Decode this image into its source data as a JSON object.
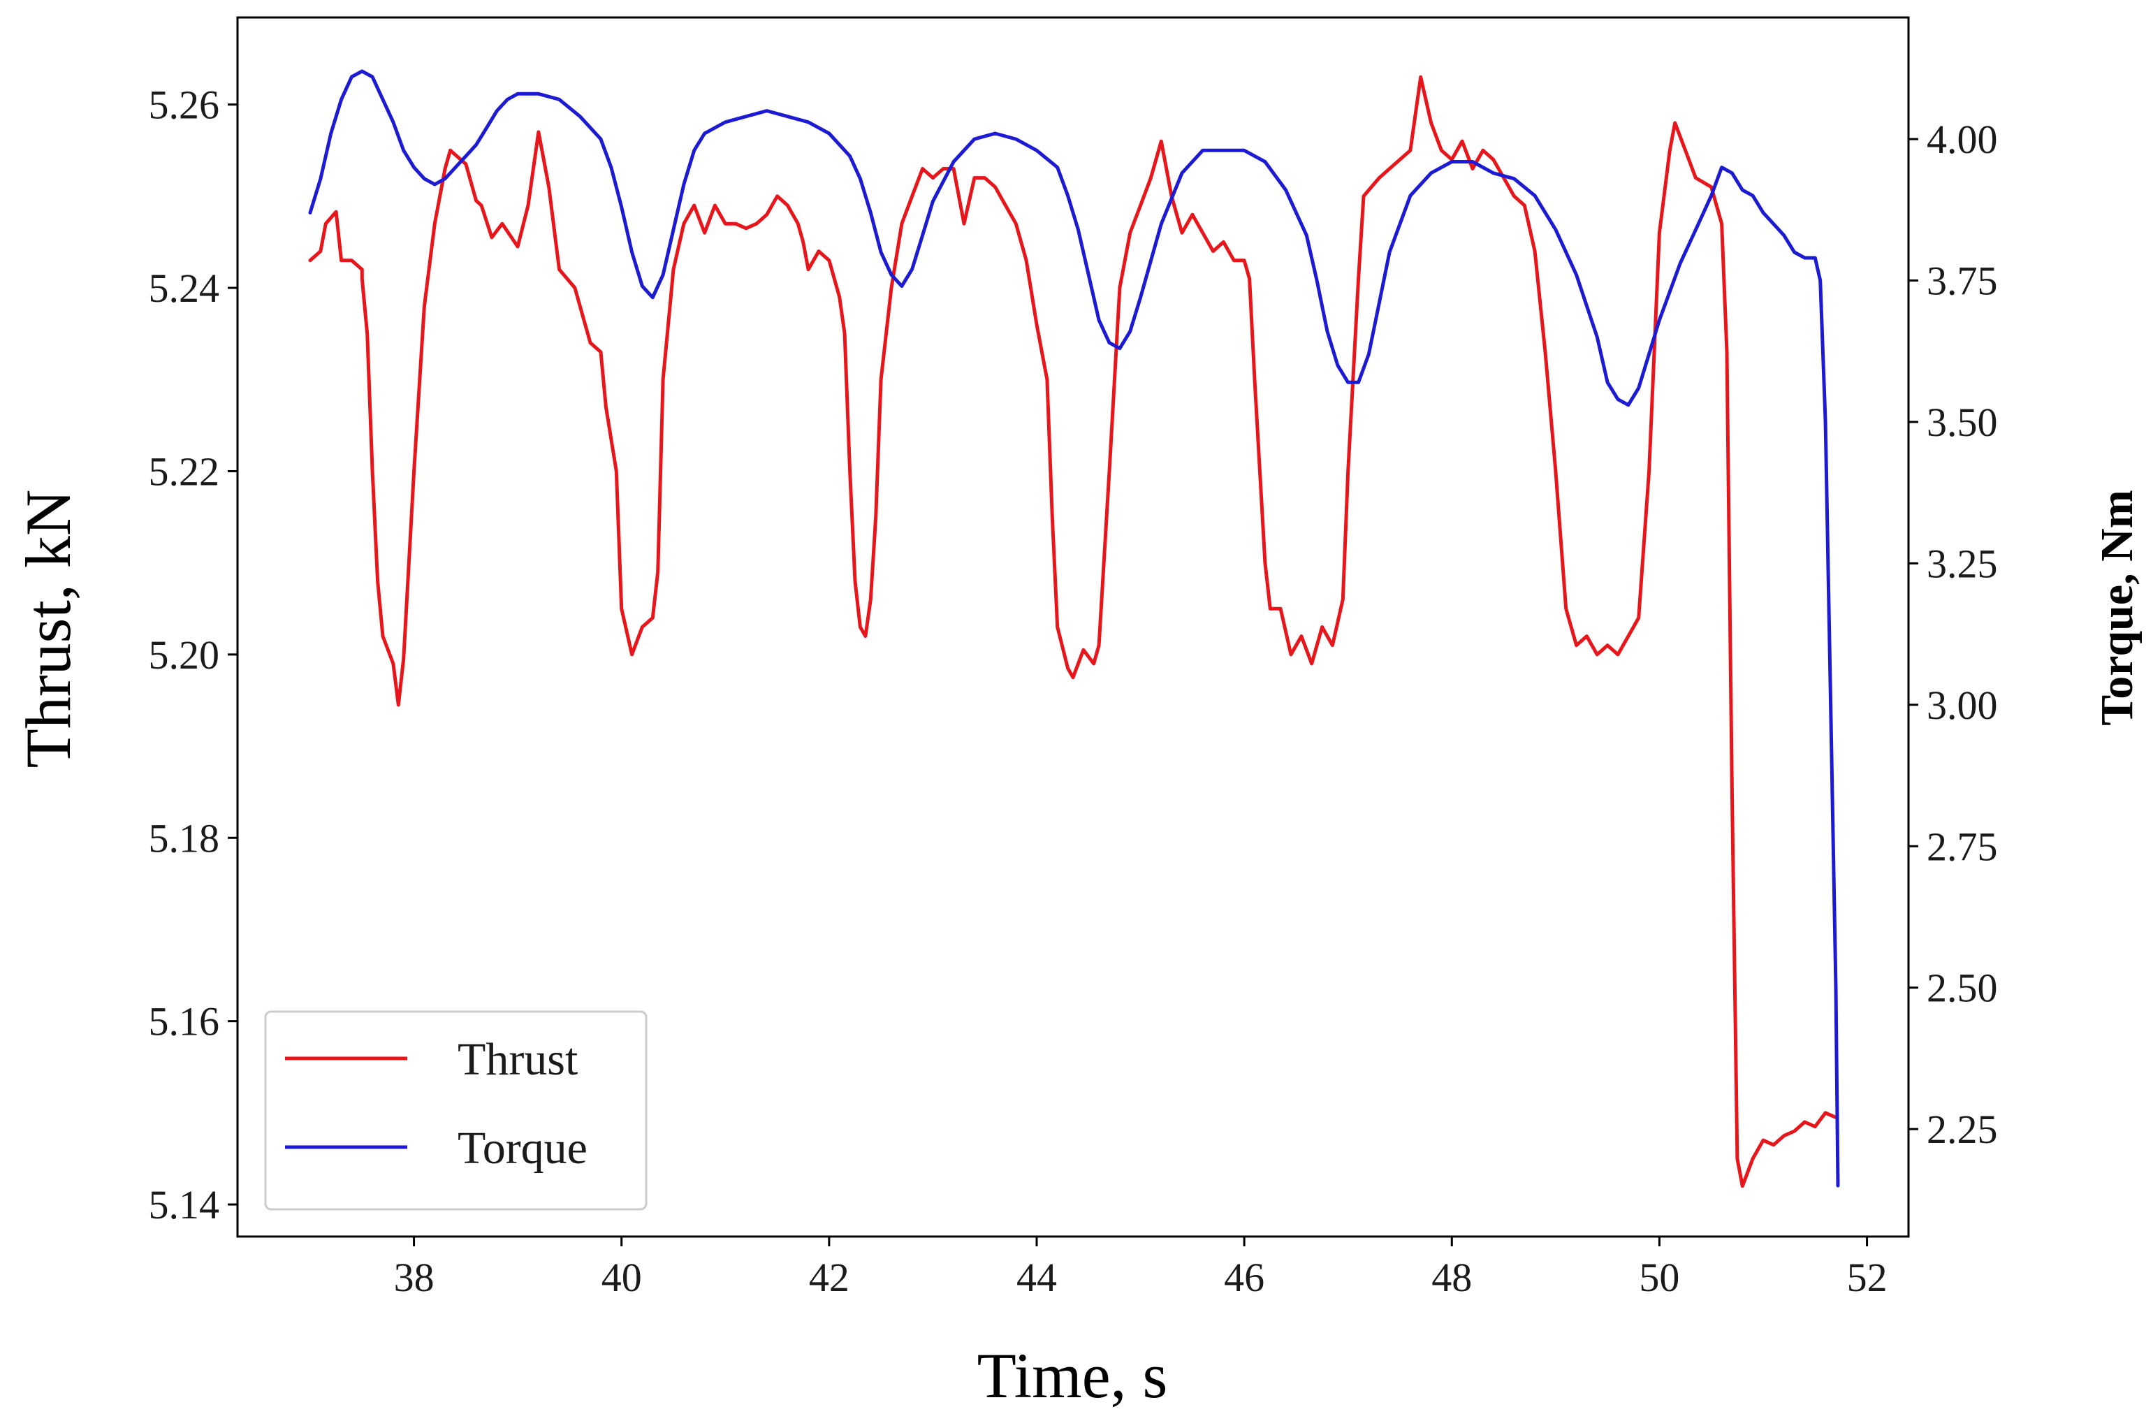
{
  "chart_data": {
    "type": "line",
    "title": "",
    "xlabel": "Time, s",
    "ylabel_left": "Thrust, kN",
    "ylabel_right": "Torque, Nm",
    "xlim": [
      36.3,
      52.4
    ],
    "ylim_left": [
      5.1365,
      5.2695
    ],
    "ylim_right": [
      2.06,
      4.215
    ],
    "x_ticks": [
      38,
      40,
      42,
      44,
      46,
      48,
      50,
      52
    ],
    "x_tick_labels": [
      "38",
      "40",
      "42",
      "44",
      "46",
      "48",
      "50",
      "52"
    ],
    "y_left_ticks": [
      5.14,
      5.16,
      5.18,
      5.2,
      5.22,
      5.24,
      5.26
    ],
    "y_left_tick_labels": [
      "5.14",
      "5.16",
      "5.18",
      "5.20",
      "5.22",
      "5.24",
      "5.26"
    ],
    "y_right_ticks": [
      2.25,
      2.5,
      2.75,
      3.0,
      3.25,
      3.5,
      3.75,
      4.0
    ],
    "y_right_tick_labels": [
      "2.25",
      "2.50",
      "2.75",
      "3.00",
      "3.25",
      "3.50",
      "3.75",
      "4.00"
    ],
    "grid": false,
    "legend_position": "lower-left",
    "series": [
      {
        "name": "Thrust",
        "axis": "left",
        "color": "#e8161b",
        "points": [
          [
            37.0,
            5.243
          ],
          [
            37.1,
            5.244
          ],
          [
            37.15,
            5.247
          ],
          [
            37.25,
            5.2483
          ],
          [
            37.3,
            5.243
          ],
          [
            37.4,
            5.243
          ],
          [
            37.5,
            5.242
          ],
          [
            37.5,
            5.241
          ],
          [
            37.55,
            5.235
          ],
          [
            37.6,
            5.22
          ],
          [
            37.65,
            5.208
          ],
          [
            37.7,
            5.202
          ],
          [
            37.8,
            5.199
          ],
          [
            37.85,
            5.1945
          ],
          [
            37.9,
            5.1995
          ],
          [
            38.0,
            5.22
          ],
          [
            38.1,
            5.238
          ],
          [
            38.2,
            5.247
          ],
          [
            38.3,
            5.253
          ],
          [
            38.35,
            5.255
          ],
          [
            38.5,
            5.2535
          ],
          [
            38.6,
            5.2495
          ],
          [
            38.65,
            5.249
          ],
          [
            38.75,
            5.2455
          ],
          [
            38.85,
            5.247
          ],
          [
            39.0,
            5.2445
          ],
          [
            39.1,
            5.249
          ],
          [
            39.2,
            5.257
          ],
          [
            39.3,
            5.251
          ],
          [
            39.4,
            5.242
          ],
          [
            39.55,
            5.24
          ],
          [
            39.7,
            5.234
          ],
          [
            39.8,
            5.233
          ],
          [
            39.85,
            5.227
          ],
          [
            39.95,
            5.22
          ],
          [
            40.0,
            5.205
          ],
          [
            40.1,
            5.2
          ],
          [
            40.2,
            5.203
          ],
          [
            40.3,
            5.204
          ],
          [
            40.35,
            5.209
          ],
          [
            40.4,
            5.23
          ],
          [
            40.5,
            5.242
          ],
          [
            40.6,
            5.247
          ],
          [
            40.7,
            5.249
          ],
          [
            40.8,
            5.246
          ],
          [
            40.9,
            5.249
          ],
          [
            41.0,
            5.247
          ],
          [
            41.1,
            5.247
          ],
          [
            41.2,
            5.2465
          ],
          [
            41.3,
            5.247
          ],
          [
            41.4,
            5.248
          ],
          [
            41.5,
            5.25
          ],
          [
            41.6,
            5.249
          ],
          [
            41.7,
            5.247
          ],
          [
            41.75,
            5.245
          ],
          [
            41.8,
            5.242
          ],
          [
            41.9,
            5.244
          ],
          [
            42.0,
            5.243
          ],
          [
            42.1,
            5.239
          ],
          [
            42.15,
            5.235
          ],
          [
            42.2,
            5.22
          ],
          [
            42.25,
            5.208
          ],
          [
            42.3,
            5.203
          ],
          [
            42.35,
            5.202
          ],
          [
            42.4,
            5.206
          ],
          [
            42.45,
            5.215
          ],
          [
            42.5,
            5.23
          ],
          [
            42.6,
            5.24
          ],
          [
            42.7,
            5.247
          ],
          [
            42.8,
            5.25
          ],
          [
            42.9,
            5.253
          ],
          [
            43.0,
            5.252
          ],
          [
            43.1,
            5.253
          ],
          [
            43.2,
            5.253
          ],
          [
            43.3,
            5.247
          ],
          [
            43.4,
            5.252
          ],
          [
            43.5,
            5.252
          ],
          [
            43.6,
            5.251
          ],
          [
            43.7,
            5.249
          ],
          [
            43.8,
            5.247
          ],
          [
            43.9,
            5.243
          ],
          [
            44.0,
            5.236
          ],
          [
            44.1,
            5.23
          ],
          [
            44.15,
            5.215
          ],
          [
            44.2,
            5.203
          ],
          [
            44.3,
            5.1985
          ],
          [
            44.35,
            5.1975
          ],
          [
            44.45,
            5.2005
          ],
          [
            44.55,
            5.199
          ],
          [
            44.6,
            5.201
          ],
          [
            44.7,
            5.22
          ],
          [
            44.8,
            5.24
          ],
          [
            44.9,
            5.246
          ],
          [
            45.0,
            5.249
          ],
          [
            45.1,
            5.252
          ],
          [
            45.2,
            5.256
          ],
          [
            45.3,
            5.25
          ],
          [
            45.4,
            5.246
          ],
          [
            45.5,
            5.248
          ],
          [
            45.6,
            5.246
          ],
          [
            45.7,
            5.244
          ],
          [
            45.8,
            5.245
          ],
          [
            45.9,
            5.243
          ],
          [
            46.0,
            5.243
          ],
          [
            46.05,
            5.241
          ],
          [
            46.1,
            5.23
          ],
          [
            46.2,
            5.21
          ],
          [
            46.25,
            5.205
          ],
          [
            46.35,
            5.205
          ],
          [
            46.45,
            5.2
          ],
          [
            46.55,
            5.202
          ],
          [
            46.65,
            5.199
          ],
          [
            46.75,
            5.203
          ],
          [
            46.85,
            5.201
          ],
          [
            46.95,
            5.206
          ],
          [
            47.0,
            5.22
          ],
          [
            47.1,
            5.241
          ],
          [
            47.15,
            5.25
          ],
          [
            47.3,
            5.252
          ],
          [
            47.4,
            5.253
          ],
          [
            47.5,
            5.254
          ],
          [
            47.6,
            5.255
          ],
          [
            47.7,
            5.263
          ],
          [
            47.8,
            5.258
          ],
          [
            47.9,
            5.255
          ],
          [
            48.0,
            5.254
          ],
          [
            48.1,
            5.256
          ],
          [
            48.2,
            5.253
          ],
          [
            48.3,
            5.255
          ],
          [
            48.4,
            5.254
          ],
          [
            48.5,
            5.252
          ],
          [
            48.6,
            5.25
          ],
          [
            48.7,
            5.249
          ],
          [
            48.8,
            5.244
          ],
          [
            48.9,
            5.233
          ],
          [
            49.0,
            5.22
          ],
          [
            49.1,
            5.205
          ],
          [
            49.2,
            5.201
          ],
          [
            49.3,
            5.202
          ],
          [
            49.4,
            5.2
          ],
          [
            49.5,
            5.201
          ],
          [
            49.6,
            5.2
          ],
          [
            49.7,
            5.202
          ],
          [
            49.8,
            5.204
          ],
          [
            49.9,
            5.22
          ],
          [
            50.0,
            5.246
          ],
          [
            50.1,
            5.255
          ],
          [
            50.15,
            5.258
          ],
          [
            50.25,
            5.255
          ],
          [
            50.35,
            5.252
          ],
          [
            50.5,
            5.251
          ],
          [
            50.6,
            5.247
          ],
          [
            50.65,
            5.233
          ],
          [
            50.7,
            5.185
          ],
          [
            50.75,
            5.145
          ],
          [
            50.8,
            5.142
          ],
          [
            50.9,
            5.145
          ],
          [
            51.0,
            5.147
          ],
          [
            51.1,
            5.1465
          ],
          [
            51.2,
            5.1475
          ],
          [
            51.3,
            5.148
          ],
          [
            51.4,
            5.149
          ],
          [
            51.5,
            5.1485
          ],
          [
            51.6,
            5.15
          ],
          [
            51.7,
            5.1495
          ]
        ]
      },
      {
        "name": "Torque",
        "axis": "right",
        "color": "#1c1bd3",
        "points": [
          [
            37.0,
            3.87
          ],
          [
            37.1,
            3.93
          ],
          [
            37.2,
            4.01
          ],
          [
            37.3,
            4.07
          ],
          [
            37.4,
            4.11
          ],
          [
            37.5,
            4.12
          ],
          [
            37.6,
            4.11
          ],
          [
            37.7,
            4.07
          ],
          [
            37.8,
            4.03
          ],
          [
            37.9,
            3.98
          ],
          [
            38.0,
            3.95
          ],
          [
            38.1,
            3.93
          ],
          [
            38.2,
            3.92
          ],
          [
            38.3,
            3.93
          ],
          [
            38.4,
            3.95
          ],
          [
            38.5,
            3.97
          ],
          [
            38.6,
            3.99
          ],
          [
            38.7,
            4.02
          ],
          [
            38.8,
            4.05
          ],
          [
            38.9,
            4.07
          ],
          [
            39.0,
            4.08
          ],
          [
            39.2,
            4.08
          ],
          [
            39.4,
            4.07
          ],
          [
            39.6,
            4.04
          ],
          [
            39.8,
            4.0
          ],
          [
            39.9,
            3.95
          ],
          [
            40.0,
            3.88
          ],
          [
            40.1,
            3.8
          ],
          [
            40.2,
            3.74
          ],
          [
            40.3,
            3.72
          ],
          [
            40.4,
            3.76
          ],
          [
            40.5,
            3.84
          ],
          [
            40.6,
            3.92
          ],
          [
            40.7,
            3.98
          ],
          [
            40.8,
            4.01
          ],
          [
            41.0,
            4.03
          ],
          [
            41.2,
            4.04
          ],
          [
            41.4,
            4.05
          ],
          [
            41.6,
            4.04
          ],
          [
            41.8,
            4.03
          ],
          [
            42.0,
            4.01
          ],
          [
            42.2,
            3.97
          ],
          [
            42.3,
            3.93
          ],
          [
            42.4,
            3.87
          ],
          [
            42.5,
            3.8
          ],
          [
            42.6,
            3.76
          ],
          [
            42.7,
            3.74
          ],
          [
            42.8,
            3.77
          ],
          [
            42.9,
            3.83
          ],
          [
            43.0,
            3.89
          ],
          [
            43.2,
            3.96
          ],
          [
            43.4,
            4.0
          ],
          [
            43.6,
            4.01
          ],
          [
            43.8,
            4.0
          ],
          [
            44.0,
            3.98
          ],
          [
            44.2,
            3.95
          ],
          [
            44.3,
            3.9
          ],
          [
            44.4,
            3.84
          ],
          [
            44.5,
            3.76
          ],
          [
            44.6,
            3.68
          ],
          [
            44.7,
            3.64
          ],
          [
            44.8,
            3.63
          ],
          [
            44.9,
            3.66
          ],
          [
            45.0,
            3.72
          ],
          [
            45.2,
            3.85
          ],
          [
            45.4,
            3.94
          ],
          [
            45.6,
            3.98
          ],
          [
            45.8,
            3.98
          ],
          [
            46.0,
            3.98
          ],
          [
            46.2,
            3.96
          ],
          [
            46.4,
            3.91
          ],
          [
            46.6,
            3.83
          ],
          [
            46.7,
            3.75
          ],
          [
            46.8,
            3.66
          ],
          [
            46.9,
            3.6
          ],
          [
            47.0,
            3.57
          ],
          [
            47.1,
            3.57
          ],
          [
            47.2,
            3.62
          ],
          [
            47.3,
            3.71
          ],
          [
            47.4,
            3.8
          ],
          [
            47.6,
            3.9
          ],
          [
            47.8,
            3.94
          ],
          [
            48.0,
            3.96
          ],
          [
            48.2,
            3.96
          ],
          [
            48.4,
            3.94
          ],
          [
            48.6,
            3.93
          ],
          [
            48.8,
            3.9
          ],
          [
            49.0,
            3.84
          ],
          [
            49.2,
            3.76
          ],
          [
            49.4,
            3.65
          ],
          [
            49.5,
            3.57
          ],
          [
            49.6,
            3.54
          ],
          [
            49.7,
            3.53
          ],
          [
            49.8,
            3.56
          ],
          [
            49.9,
            3.62
          ],
          [
            50.0,
            3.68
          ],
          [
            50.2,
            3.78
          ],
          [
            50.4,
            3.86
          ],
          [
            50.5,
            3.9
          ],
          [
            50.6,
            3.95
          ],
          [
            50.7,
            3.94
          ],
          [
            50.8,
            3.91
          ],
          [
            50.9,
            3.9
          ],
          [
            51.0,
            3.87
          ],
          [
            51.2,
            3.83
          ],
          [
            51.3,
            3.8
          ],
          [
            51.4,
            3.79
          ],
          [
            51.5,
            3.79
          ],
          [
            51.55,
            3.75
          ],
          [
            51.6,
            3.5
          ],
          [
            51.65,
            3.0
          ],
          [
            51.7,
            2.5
          ],
          [
            51.72,
            2.15
          ]
        ]
      }
    ]
  }
}
